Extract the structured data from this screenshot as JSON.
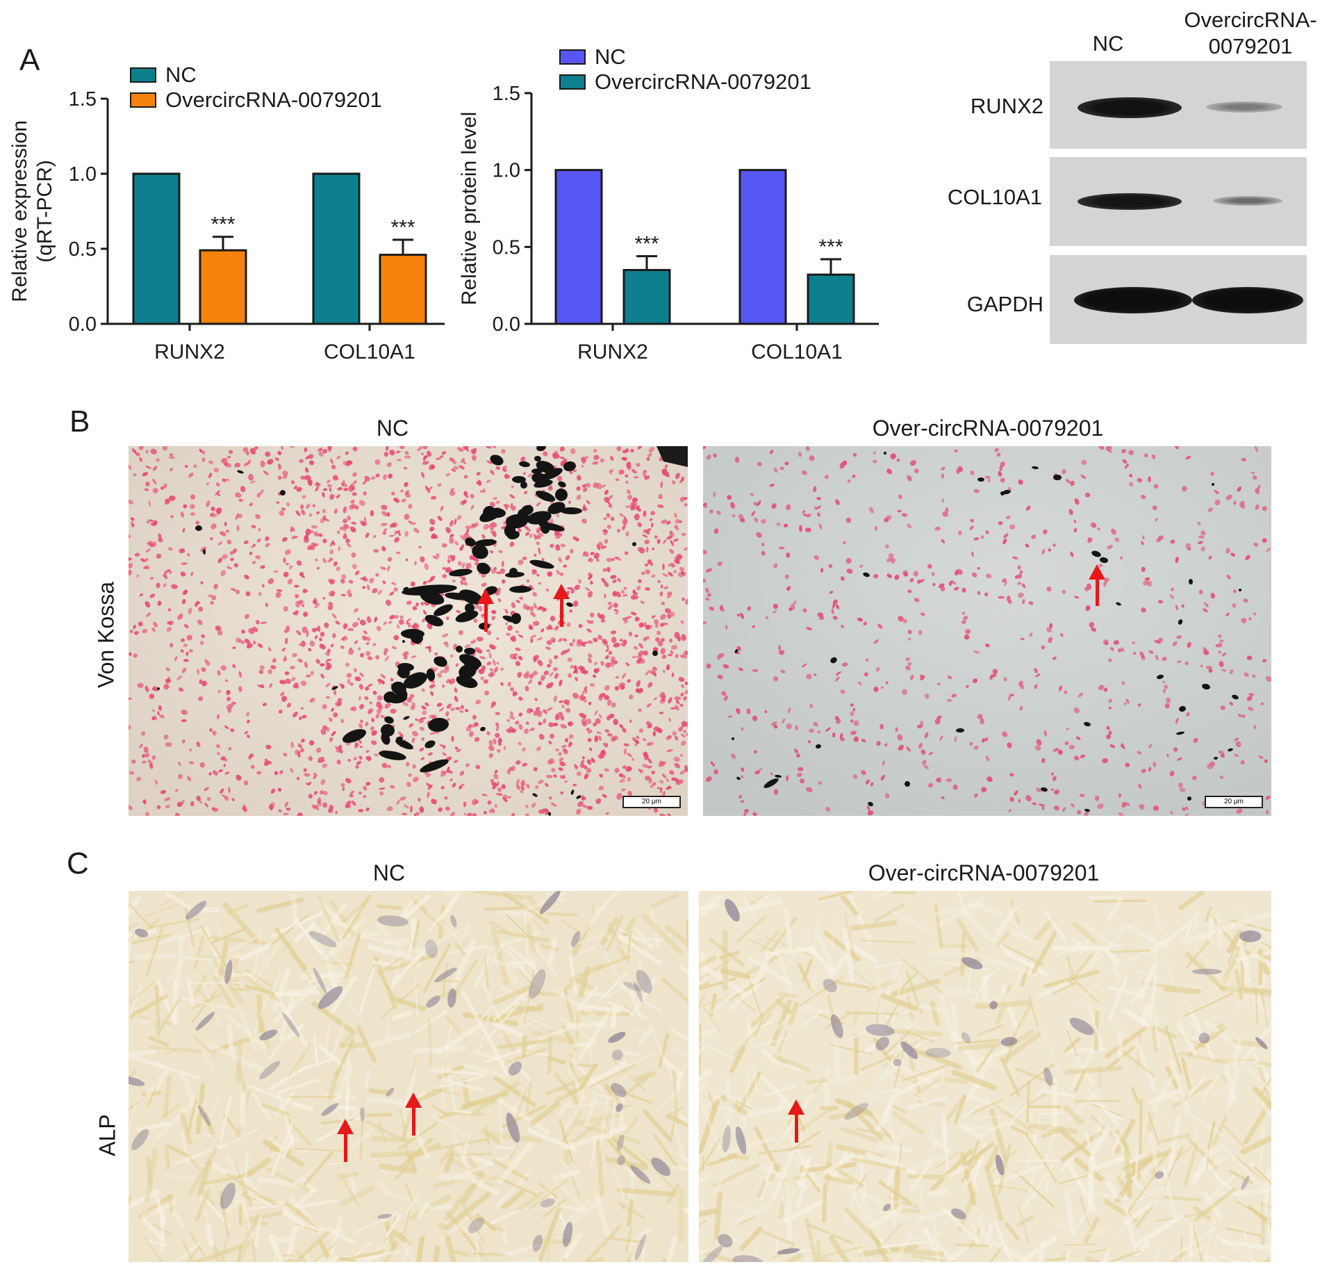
{
  "panels": {
    "a_label": "A",
    "b_label": "B",
    "c_label": "C"
  },
  "chart_data": [
    {
      "type": "bar",
      "categories": [
        "RUNX2",
        "COL10A1"
      ],
      "series": [
        {
          "name": "NC",
          "values": [
            1.0,
            1.0
          ],
          "errors": [
            0,
            0
          ],
          "color": "#0e7f8c"
        },
        {
          "name": "OvercircRNA-0079201",
          "values": [
            0.49,
            0.46
          ],
          "errors": [
            0.09,
            0.1
          ],
          "color": "#f7830f"
        }
      ],
      "significance": [
        "***",
        "***"
      ],
      "ylabel": "Relative expression",
      "ylabel2": "(qRT-PCR)",
      "ylim": [
        0,
        1.5
      ],
      "yticks": [
        "0.0",
        "0.5",
        "1.0",
        "1.5"
      ],
      "legend": "top-left"
    },
    {
      "type": "bar",
      "categories": [
        "RUNX2",
        "COL10A1"
      ],
      "series": [
        {
          "name": "NC",
          "values": [
            1.0,
            1.0
          ],
          "errors": [
            0,
            0
          ],
          "color": "#5757f5"
        },
        {
          "name": "OvercircRNA-0079201",
          "values": [
            0.35,
            0.32
          ],
          "errors": [
            0.09,
            0.1
          ],
          "color": "#0e7f8c"
        }
      ],
      "significance": [
        "***",
        "***"
      ],
      "ylabel": "Relative protein level",
      "ylabel2": "",
      "ylim": [
        0,
        1.5
      ],
      "yticks": [
        "0.0",
        "0.5",
        "1.0",
        "1.5"
      ],
      "legend": "top-left"
    }
  ],
  "western_blot": {
    "col_nc": "NC",
    "col_over_line1": "OvercircRNA-",
    "col_over_line2": "0079201",
    "rows": [
      "RUNX2",
      "COL10A1",
      "GAPDH"
    ]
  },
  "panel_b": {
    "row_label": "Von Kossa",
    "left_title": "NC",
    "right_title": "Over-circRNA-0079201",
    "scale_left": "20 μm",
    "scale_right": "20 μm"
  },
  "panel_c": {
    "row_label": "ALP",
    "left_title": "NC",
    "right_title": "Over-circRNA-0079201"
  }
}
